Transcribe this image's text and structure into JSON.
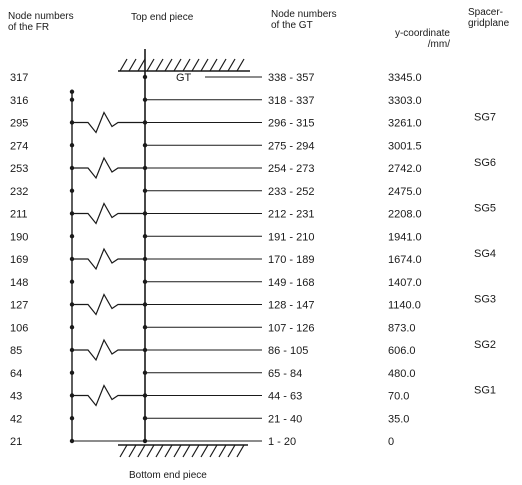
{
  "headers": {
    "fr_nodes": [
      "Node numbers",
      "of the FR"
    ],
    "top_end": "Top end piece",
    "gt_nodes": [
      "Node numbers",
      "of the GT"
    ],
    "ycoord": [
      "y-coordinate",
      "/mm/"
    ],
    "spacer": [
      "Spacer-",
      "gridplane"
    ]
  },
  "gt_label": "GT",
  "bottom_label": "Bottom end piece",
  "rows": [
    {
      "fr": "317",
      "gt": "338 - 357",
      "y": "3345.0",
      "spring": false,
      "top": true
    },
    {
      "fr": "316",
      "gt": "318 - 337",
      "y": "3303.0",
      "spring": false
    },
    {
      "fr": "295",
      "gt": "296 - 315",
      "y": "3261.0",
      "spring": true,
      "sg": "SG7"
    },
    {
      "fr": "274",
      "gt": "275 - 294",
      "y": "3001.5",
      "spring": false
    },
    {
      "fr": "253",
      "gt": "254 - 273",
      "y": "2742.0",
      "spring": true,
      "sg": "SG6"
    },
    {
      "fr": "232",
      "gt": "233 - 252",
      "y": "2475.0",
      "spring": false
    },
    {
      "fr": "211",
      "gt": "212 - 231",
      "y": "2208.0",
      "spring": true,
      "sg": "SG5"
    },
    {
      "fr": "190",
      "gt": "191 - 210",
      "y": "1941.0",
      "spring": false
    },
    {
      "fr": "169",
      "gt": "170 - 189",
      "y": "1674.0",
      "spring": true,
      "sg": "SG4"
    },
    {
      "fr": "148",
      "gt": "149 - 168",
      "y": "1407.0",
      "spring": false
    },
    {
      "fr": "127",
      "gt": "128 - 147",
      "y": "1140.0",
      "spring": true,
      "sg": "SG3"
    },
    {
      "fr": "106",
      "gt": "107 - 126",
      "y": "873.0",
      "spring": false
    },
    {
      "fr": "85",
      "gt": "86 - 105",
      "y": "606.0",
      "spring": true,
      "sg": "SG2"
    },
    {
      "fr": "64",
      "gt": "65 - 84",
      "y": "480.0",
      "spring": false
    },
    {
      "fr": "43",
      "gt": "44 - 63",
      "y": "70.0",
      "spring": true,
      "sg": "SG1"
    },
    {
      "fr": "42",
      "gt": "21 - 40",
      "y": "35.0",
      "spring": false
    },
    {
      "fr": "21",
      "gt": "1 - 20",
      "y": "0",
      "spring": false,
      "bottom": true
    }
  ]
}
